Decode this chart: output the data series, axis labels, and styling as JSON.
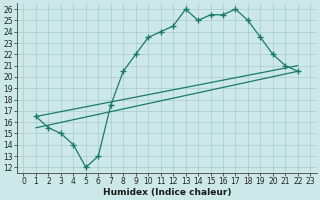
{
  "bg_color": "#cce8e8",
  "grid_color": "#aacccc",
  "line_color": "#1a7a6a",
  "line_width": 0.9,
  "marker": "+",
  "marker_size": 4,
  "marker_ew": 1.0,
  "xlabel": "Humidex (Indice chaleur)",
  "xlabel_fontsize": 6.5,
  "tick_fontsize": 5.5,
  "xlim": [
    -0.5,
    23.5
  ],
  "ylim": [
    11.5,
    26.5
  ],
  "xticks": [
    0,
    1,
    2,
    3,
    4,
    5,
    6,
    7,
    8,
    9,
    10,
    11,
    12,
    13,
    14,
    15,
    16,
    17,
    18,
    19,
    20,
    21,
    22,
    23
  ],
  "yticks": [
    12,
    13,
    14,
    15,
    16,
    17,
    18,
    19,
    20,
    21,
    22,
    23,
    24,
    25,
    26
  ],
  "line1_x": [
    1,
    2,
    3,
    4,
    5,
    6,
    7,
    8,
    9,
    10,
    11,
    12,
    13,
    14,
    15,
    16,
    17,
    18,
    19,
    20,
    21,
    22
  ],
  "line1_y": [
    16.5,
    15.5,
    15.0,
    14.0,
    12.0,
    13.0,
    17.5,
    20.5,
    22.0,
    23.5,
    24.0,
    24.5,
    26.0,
    25.0,
    25.5,
    25.5,
    26.0,
    25.0,
    23.5,
    22.0,
    21.0,
    20.5
  ],
  "line2_x": [
    1,
    22
  ],
  "line2_y": [
    16.5,
    21.0
  ],
  "line3_x": [
    1,
    22
  ],
  "line3_y": [
    15.5,
    20.5
  ]
}
